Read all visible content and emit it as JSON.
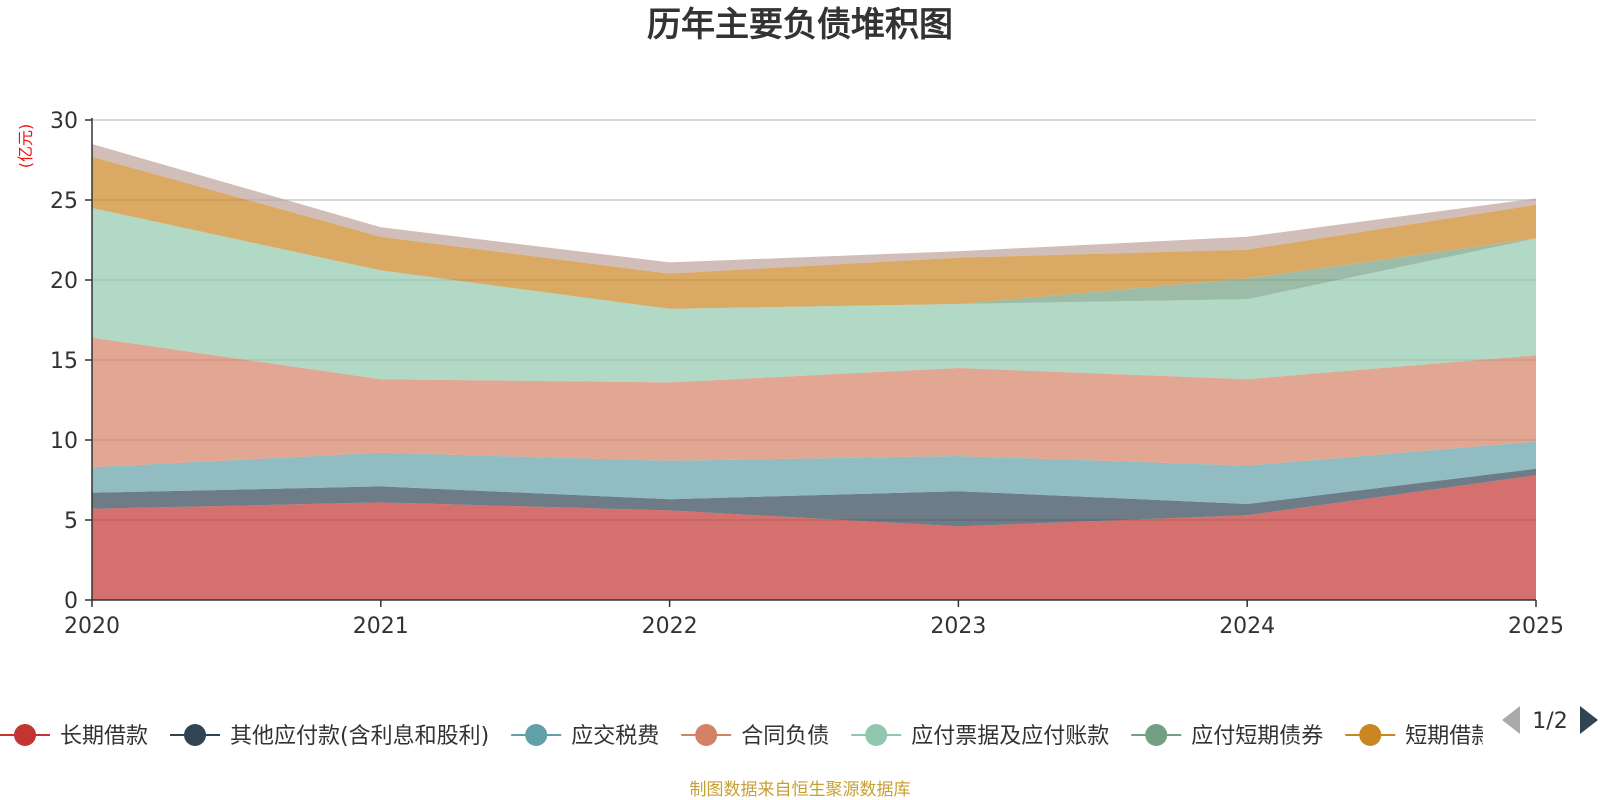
{
  "chart_data": {
    "type": "area",
    "stacked": true,
    "title": "历年主要负债堆积图",
    "y_unit": "(亿元)",
    "x": [
      "2020",
      "2021",
      "2022",
      "2023",
      "2024",
      "2025"
    ],
    "yticks": [
      "0",
      "5",
      "10",
      "15",
      "20",
      "25",
      "30"
    ],
    "ylim": [
      0,
      30
    ],
    "grid": true,
    "legend_position": "bottom",
    "series": [
      {
        "name": "长期借款",
        "color": "#c23531",
        "values": [
          5.7,
          6.1,
          5.6,
          4.6,
          5.3,
          7.8
        ]
      },
      {
        "name": "其他应付款(含利息和股利)",
        "color": "#2f4554",
        "values": [
          1.0,
          1.0,
          0.7,
          2.2,
          0.7,
          0.4
        ]
      },
      {
        "name": "应交税费",
        "color": "#61a0a8",
        "values": [
          1.6,
          2.1,
          2.4,
          2.2,
          2.4,
          1.7
        ]
      },
      {
        "name": "合同负债",
        "color": "#d48265",
        "values": [
          8.1,
          4.6,
          4.9,
          5.5,
          5.4,
          5.4
        ]
      },
      {
        "name": "应付票据及应付账款",
        "color": "#91c7ae",
        "values": [
          8.1,
          6.8,
          4.6,
          4.0,
          5.0,
          7.3
        ]
      },
      {
        "name": "应付短期债券",
        "color": "#749f83",
        "values": [
          0.0,
          0.0,
          0.0,
          0.0,
          1.3,
          0.0
        ]
      },
      {
        "name": "短期借款",
        "color": "#ca8622",
        "values": [
          3.2,
          2.1,
          2.2,
          2.9,
          1.8,
          2.1
        ]
      },
      {
        "name": "",
        "color": "#bda29a",
        "values": [
          0.8,
          0.6,
          0.7,
          0.4,
          0.8,
          0.4
        ]
      }
    ]
  },
  "legend": {
    "page_indicator": "1/2",
    "prev_icon": "triangle-left-icon",
    "next_icon": "triangle-right-icon"
  },
  "source_text": "制图数据来自恒生聚源数据库",
  "colors": {
    "unit_label": "#ee1111",
    "source_text": "#c8a032",
    "pager_disabled": "#aaaaaa",
    "pager_active": "#2f4554"
  }
}
